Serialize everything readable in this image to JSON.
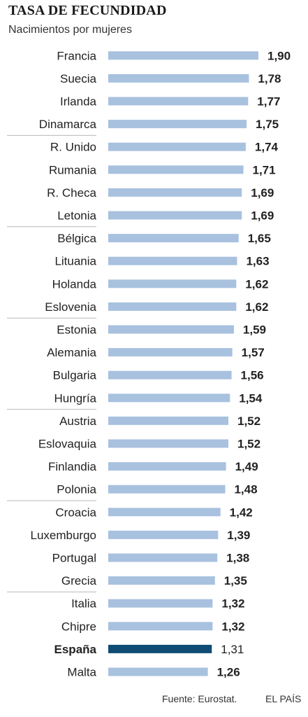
{
  "title": "TASA DE FECUNDIDAD",
  "subtitle": "Nacimientos por mujeres",
  "footer": {
    "source": "Fuente: Eurostat.",
    "brand": "EL PAÍS"
  },
  "colors": {
    "bar": "#a8c1df",
    "highlight": "#0e4c75",
    "separator": "#b8b8b8",
    "text": "#222222"
  },
  "chart_data": {
    "type": "bar",
    "orientation": "horizontal",
    "categories": [
      "Francia",
      "Suecia",
      "Irlanda",
      "Dinamarca",
      "R. Unido",
      "Rumania",
      "R. Checa",
      "Letonia",
      "Bélgica",
      "Lituania",
      "Holanda",
      "Eslovenia",
      "Estonia",
      "Alemania",
      "Bulgaria",
      "Hungría",
      "Austria",
      "Eslovaquia",
      "Finlandia",
      "Polonia",
      "Croacia",
      "Luxemburgo",
      "Portugal",
      "Grecia",
      "Italia",
      "Chipre",
      "España",
      "Malta"
    ],
    "values": [
      1.9,
      1.78,
      1.77,
      1.75,
      1.74,
      1.71,
      1.69,
      1.69,
      1.65,
      1.63,
      1.62,
      1.62,
      1.59,
      1.57,
      1.56,
      1.54,
      1.52,
      1.52,
      1.49,
      1.48,
      1.42,
      1.39,
      1.38,
      1.35,
      1.32,
      1.32,
      1.31,
      1.26
    ],
    "value_labels": [
      "1,90",
      "1,78",
      "1,77",
      "1,75",
      "1,74",
      "1,71",
      "1,69",
      "1,69",
      "1,65",
      "1,63",
      "1,62",
      "1,62",
      "1,59",
      "1,57",
      "1,56",
      "1,54",
      "1,52",
      "1,52",
      "1,49",
      "1,48",
      "1,42",
      "1,39",
      "1,38",
      "1,35",
      "1,32",
      "1,32",
      "1,31",
      "1,26"
    ],
    "highlight": "España",
    "group_size": 4,
    "xlim": [
      0,
      1.9
    ],
    "grid": false,
    "legend": "none",
    "title": "TASA DE FECUNDIDAD",
    "subtitle": "Nacimientos por mujeres"
  }
}
